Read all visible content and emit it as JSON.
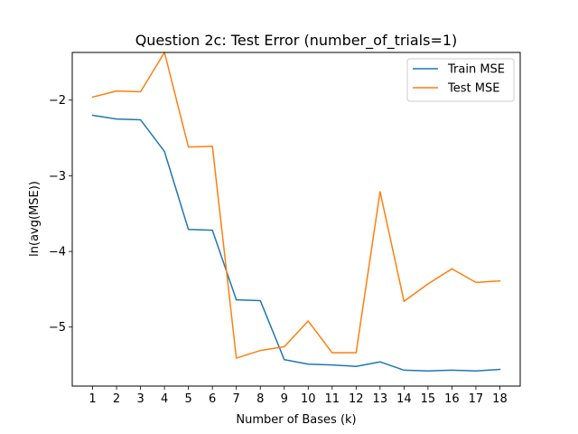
{
  "chart_data": {
    "type": "line",
    "title": "Question 2c: Test Error (number_of_trials=1)",
    "xlabel": "Number of Bases (k)",
    "ylabel": "ln(avg(MSE))",
    "x": [
      1,
      2,
      3,
      4,
      5,
      6,
      7,
      8,
      9,
      10,
      11,
      12,
      13,
      14,
      15,
      16,
      17,
      18
    ],
    "xlim": [
      0.15,
      18.85
    ],
    "ylim": [
      -5.78,
      -1.37
    ],
    "y_ticks": [
      -5,
      -4,
      -3,
      -2
    ],
    "y_tick_labels": [
      "−5",
      "−4",
      "−3",
      "−2"
    ],
    "legend_position": "top-right",
    "grid": false,
    "series": [
      {
        "name": "Train MSE",
        "color": "#1f77b4",
        "values": [
          -2.2,
          -2.25,
          -2.26,
          -2.68,
          -3.71,
          -3.72,
          -4.64,
          -4.65,
          -5.43,
          -5.49,
          -5.5,
          -5.52,
          -5.46,
          -5.57,
          -5.58,
          -5.57,
          -5.58,
          -5.56
        ]
      },
      {
        "name": "Test MSE",
        "color": "#ff7f0e",
        "values": [
          -1.96,
          -1.88,
          -1.89,
          -1.37,
          -2.62,
          -2.61,
          -5.41,
          -5.31,
          -5.26,
          -4.92,
          -5.34,
          -5.34,
          -3.21,
          -4.66,
          -4.43,
          -4.23,
          -4.41,
          -4.39
        ]
      }
    ]
  }
}
